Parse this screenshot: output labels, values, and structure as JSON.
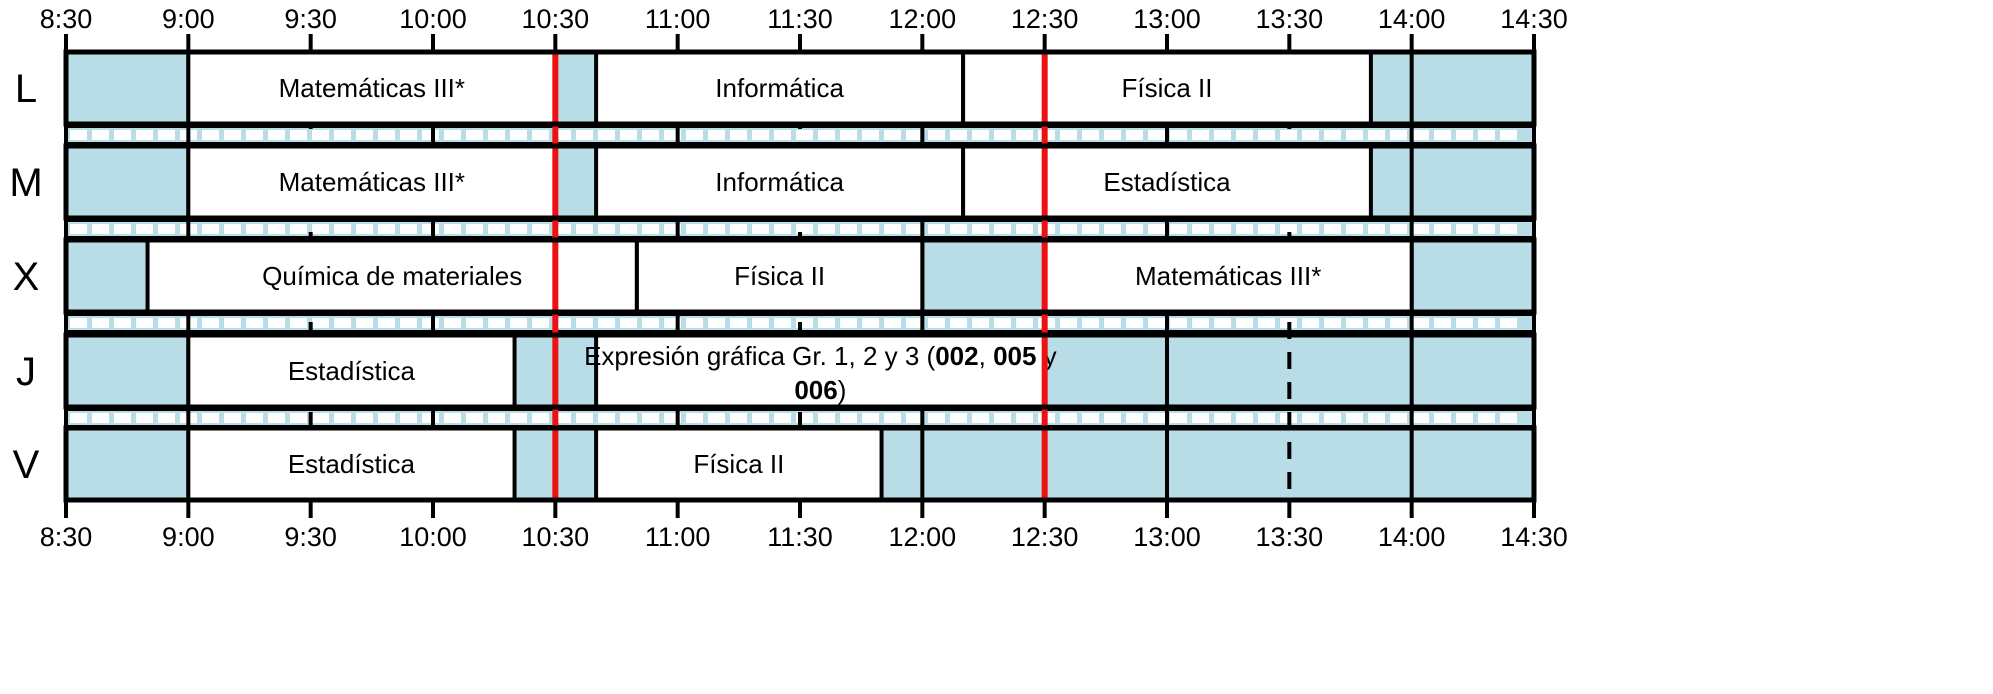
{
  "colors": {
    "free": "#b8dde6",
    "class": "#ffffff",
    "marker": "#ee1111",
    "line": "#000000"
  },
  "times": [
    "8:30",
    "9:00",
    "9:30",
    "10:00",
    "10:30",
    "11:00",
    "11:30",
    "12:00",
    "12:30",
    "13:00",
    "13:30",
    "14:00",
    "14:30"
  ],
  "markers": [
    "10:30",
    "12:30"
  ],
  "days": [
    {
      "label": "L",
      "slots": [
        {
          "name": "Matemáticas III*",
          "start": "9:00",
          "end": "10:30"
        },
        {
          "name": "Informática",
          "start": "10:40",
          "end": "12:10"
        },
        {
          "name": "Física II",
          "start": "12:10",
          "end": "13:50"
        }
      ]
    },
    {
      "label": "M",
      "slots": [
        {
          "name": "Matemáticas III*",
          "start": "9:00",
          "end": "10:30"
        },
        {
          "name": "Informática",
          "start": "10:40",
          "end": "12:10"
        },
        {
          "name": "Estadística",
          "start": "12:10",
          "end": "13:50"
        }
      ]
    },
    {
      "label": "X",
      "slots": [
        {
          "name": "Química de materiales",
          "start": "8:50",
          "end": "10:50"
        },
        {
          "name": "Física II",
          "start": "10:50",
          "end": "12:00"
        },
        {
          "name": "Matemáticas III*",
          "start": "12:30",
          "end": "14:00"
        }
      ]
    },
    {
      "label": "J",
      "slots": [
        {
          "name": "Estadística",
          "start": "9:00",
          "end": "10:20"
        },
        {
          "name": "Expresión gráfica Gr. 1, 2 y 3 (",
          "line2": ")",
          "bold_a": "002",
          "comma": ", ",
          "bold_b": "005",
          "conj": " y",
          "bold_c": "006",
          "start": "10:40",
          "end": "12:30"
        }
      ]
    },
    {
      "label": "V",
      "slots": [
        {
          "name": "Estadística",
          "start": "9:00",
          "end": "10:20"
        },
        {
          "name": "Física II",
          "start": "10:40",
          "end": "11:50"
        }
      ]
    }
  ]
}
